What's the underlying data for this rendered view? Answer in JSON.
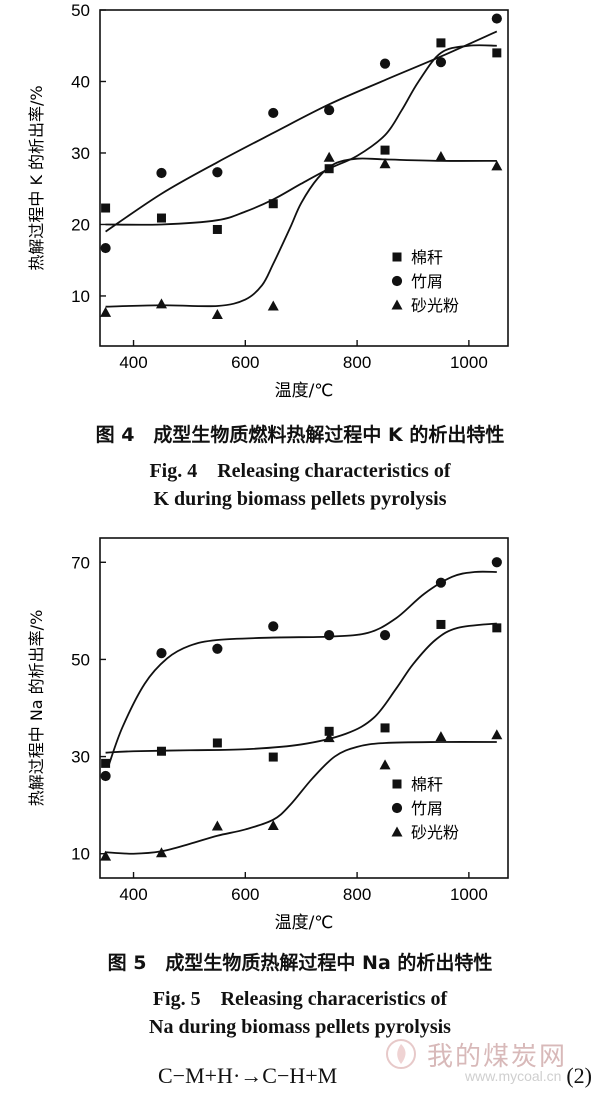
{
  "figure4": {
    "caption_cn": "图 4　成型生物质燃料热解过程中 K 的析出特性",
    "caption_en_line1": "Fig. 4　Releasing characteristics of",
    "caption_en_line2": "K during biomass pellets pyrolysis"
  },
  "figure5": {
    "caption_cn": "图 5　成型生物质热解过程中 Na 的析出特性",
    "caption_en_line1": "Fig. 5　Releasing characeristics of",
    "caption_en_line2": "Na during biomass pellets pyrolysis"
  },
  "equation": {
    "text": "C−M+H·→C−H+M",
    "number": "(2)"
  },
  "watermark": {
    "text": "我的煤炭网",
    "url": "www.mycoal.cn",
    "logo_icon": "flame-logo-icon"
  },
  "chart_data": [
    {
      "type": "scatter",
      "xlabel": "温度/℃",
      "ylabel": "热解过程中 K 的析出率/%",
      "xlim": [
        340,
        1070
      ],
      "ylim": [
        3,
        50
      ],
      "xticks": [
        400,
        600,
        800,
        1000
      ],
      "yticks": [
        10,
        20,
        30,
        40,
        50
      ],
      "grid": false,
      "legend_position": "right",
      "series": [
        {
          "name": "棉秆",
          "marker": "square",
          "x": [
            350,
            450,
            550,
            650,
            750,
            850,
            950,
            1050
          ],
          "y": [
            22.3,
            20.9,
            19.3,
            22.9,
            27.8,
            30.4,
            45.4,
            44.0
          ],
          "fit_x": [
            350,
            450,
            550,
            600,
            650,
            700,
            750,
            800,
            850,
            880,
            910,
            950,
            1000,
            1050
          ],
          "fit_y": [
            20.0,
            20.0,
            20.6,
            21.8,
            23.5,
            25.7,
            27.8,
            29.6,
            32.5,
            36.0,
            40.0,
            44.0,
            45.0,
            45.0
          ]
        },
        {
          "name": "竹屑",
          "marker": "circle",
          "x": [
            350,
            450,
            550,
            650,
            750,
            850,
            950,
            1050
          ],
          "y": [
            16.7,
            27.2,
            27.3,
            35.6,
            36.0,
            42.5,
            42.7,
            48.8
          ],
          "fit_x": [
            350,
            450,
            550,
            650,
            750,
            850,
            950,
            1050
          ],
          "fit_y": [
            19.0,
            24.3,
            28.7,
            32.8,
            36.8,
            40.2,
            43.5,
            47.0
          ]
        },
        {
          "name": "砂光粉",
          "marker": "triangle",
          "x": [
            350,
            450,
            550,
            650,
            750,
            850,
            950,
            1050
          ],
          "y": [
            7.7,
            8.9,
            7.4,
            8.6,
            29.4,
            28.5,
            29.5,
            28.2
          ],
          "fit_x": [
            350,
            450,
            550,
            600,
            630,
            650,
            680,
            700,
            730,
            760,
            800,
            850,
            950,
            1050
          ],
          "fit_y": [
            8.5,
            8.7,
            8.6,
            9.5,
            11.5,
            14.5,
            19.5,
            23.0,
            26.5,
            28.5,
            29.2,
            29.1,
            28.9,
            28.9
          ]
        }
      ]
    },
    {
      "type": "scatter",
      "xlabel": "温度/℃",
      "ylabel": "热解过程中 Na 的析出率/%",
      "xlim": [
        340,
        1070
      ],
      "ylim": [
        5,
        75
      ],
      "xticks": [
        400,
        600,
        800,
        1000
      ],
      "yticks": [
        10,
        30,
        50,
        70
      ],
      "grid": false,
      "legend_position": "right",
      "series": [
        {
          "name": "棉秆",
          "marker": "square",
          "x": [
            350,
            450,
            550,
            650,
            750,
            850,
            950,
            1050
          ],
          "y": [
            28.6,
            31.1,
            32.8,
            29.9,
            35.2,
            35.9,
            57.2,
            56.5
          ],
          "fit_x": [
            350,
            400,
            500,
            600,
            700,
            780,
            830,
            870,
            900,
            940,
            980,
            1050
          ],
          "fit_y": [
            30.8,
            31.1,
            31.3,
            31.5,
            32.5,
            34.7,
            38.0,
            44.0,
            49.0,
            54.0,
            56.5,
            57.4
          ]
        },
        {
          "name": "竹屑",
          "marker": "circle",
          "x": [
            350,
            450,
            550,
            650,
            750,
            850,
            950,
            1050
          ],
          "y": [
            26.0,
            51.3,
            52.2,
            56.8,
            55.0,
            55.0,
            65.8,
            70.0
          ],
          "fit_x": [
            355,
            380,
            420,
            460,
            500,
            550,
            650,
            750,
            820,
            870,
            920,
            970,
            1010,
            1050
          ],
          "fit_y": [
            28.0,
            36.0,
            45.0,
            50.2,
            52.8,
            54.0,
            54.5,
            54.7,
            55.5,
            58.5,
            63.5,
            67.0,
            68.0,
            68.0
          ]
        },
        {
          "name": "砂光粉",
          "marker": "triangle",
          "x": [
            350,
            450,
            550,
            650,
            750,
            850,
            950,
            1050
          ],
          "y": [
            9.5,
            10.2,
            15.7,
            15.8,
            33.9,
            28.3,
            34.1,
            34.5
          ],
          "fit_x": [
            350,
            400,
            450,
            500,
            550,
            600,
            650,
            680,
            720,
            760,
            800,
            850,
            950,
            1050
          ],
          "fit_y": [
            10.3,
            10.0,
            10.5,
            12.0,
            13.7,
            15.0,
            17.0,
            20.0,
            25.5,
            30.0,
            32.0,
            32.8,
            33.0,
            33.0
          ]
        }
      ]
    }
  ]
}
